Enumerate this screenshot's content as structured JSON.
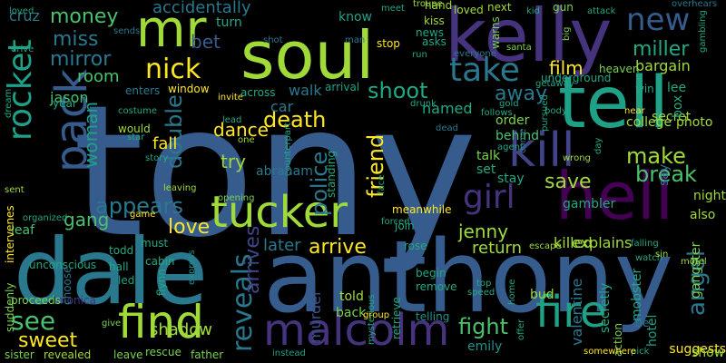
{
  "wordcloud": {
    "palette": [
      "#440154",
      "#46337e",
      "#365c8d",
      "#277f8e",
      "#1fa187",
      "#4ac16d",
      "#a0da39",
      "#fde725",
      "#414487",
      "#2a788e",
      "#22a884",
      "#7ad151",
      "#3b528b",
      "#21918c"
    ],
    "words": [
      "tony",
      "anthony",
      "dale",
      "soul",
      "kelly",
      "tell",
      "hell",
      "rocket",
      "mr",
      "tucker",
      "find",
      "malcolm",
      "fire",
      "kill",
      "new",
      "pack",
      "nick",
      "take",
      "girl",
      "death",
      "money",
      "miss",
      "mirror",
      "room",
      "bet",
      "appears",
      "love",
      "gang",
      "see",
      "sweet",
      "arrive",
      "reveals",
      "arrives",
      "later",
      "police",
      "friend",
      "jenny",
      "fight",
      "angel",
      "break",
      "make",
      "save",
      "away",
      "shoot",
      "film",
      "miller",
      "bargain",
      "cruz",
      "accidentally",
      "turn",
      "double",
      "woman",
      "dance",
      "try",
      "fall",
      "car",
      "walk",
      "shadow",
      "murder",
      "leaf",
      "unconscious",
      "todd",
      "led",
      "hall",
      "monica",
      "proceeds",
      "suddenly",
      "sister",
      "revealed",
      "leave",
      "rescue",
      "father",
      "instead",
      "back",
      "told",
      "emily",
      "bud",
      "valentine",
      "secretly",
      "return",
      "killed",
      "explains",
      "set",
      "talk",
      "stay",
      "order",
      "behind",
      "college",
      "secret",
      "lee",
      "photo",
      "box",
      "gangster",
      "mobster",
      "hotel",
      "suggests",
      "show",
      "also",
      "night",
      "say",
      "gambler",
      "meanwhile",
      "join",
      "telling",
      "begin",
      "remove",
      "rose",
      "escape",
      "jason",
      "would",
      "named",
      "must",
      "arrival",
      "know",
      "meet",
      "troupe",
      "hand",
      "loved",
      "next",
      "kiss",
      "gun",
      "attack",
      "news",
      "asks",
      "run",
      "everyone",
      "santa",
      "follows",
      "loved",
      "drive",
      "sends",
      "year",
      "dream",
      "enters",
      "window",
      "invite",
      "across",
      "shot",
      "man",
      "stop",
      "kid",
      "big",
      "warns",
      "gambling",
      "overhears",
      "heaven",
      "underground",
      "getaway",
      "win",
      "near",
      "gold",
      "wrong",
      "day",
      "star",
      "story",
      "lead",
      "one",
      "counterpart",
      "standing",
      "drunk",
      "sent",
      "intervenes",
      "organized",
      "game",
      "opening",
      "leaving",
      "flynn",
      "express",
      "choose",
      "give",
      "mysterious",
      "group",
      "speed",
      "top",
      "home",
      "offer",
      "pick",
      "action",
      "tie",
      "somewhere",
      "falling",
      "watch",
      "motel",
      "sin",
      "dead",
      "agent",
      "come",
      "pursued",
      "body",
      "costume",
      "abraham",
      "face",
      "cabin",
      "retrieve",
      "forced",
      "go"
    ]
  }
}
